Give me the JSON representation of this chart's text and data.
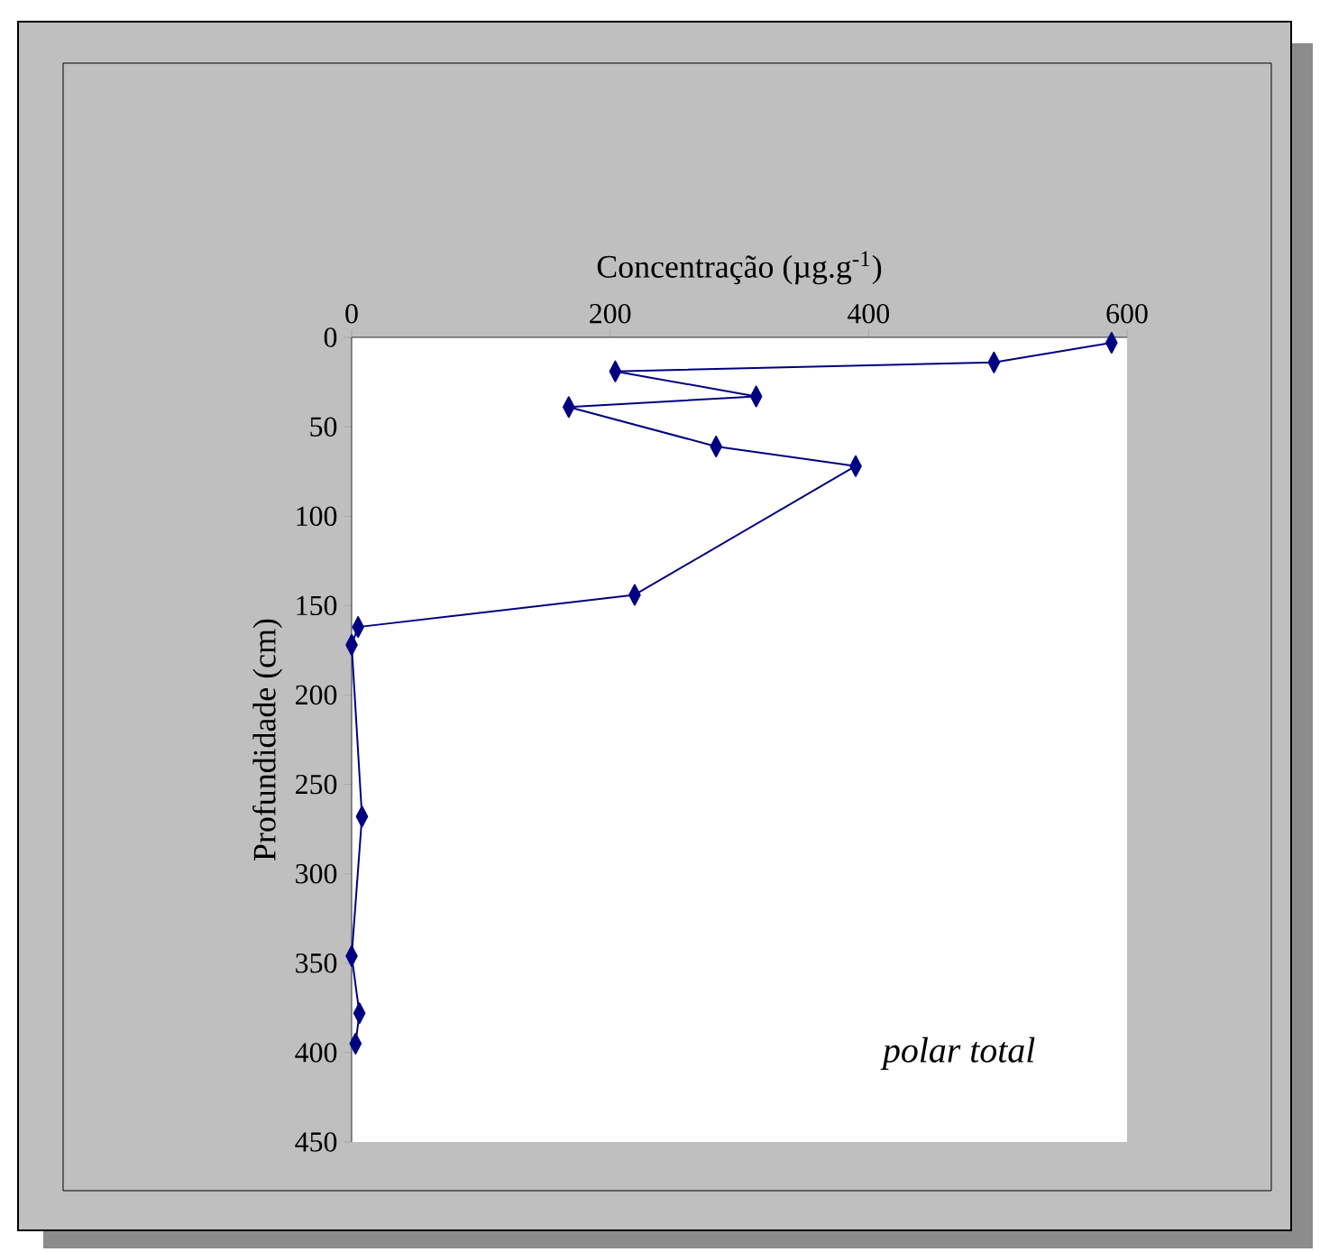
{
  "chart_data": {
    "type": "line",
    "xlabel": "Concentração (µg.g$^{-1}$)",
    "ylabel": "Profundidade (cm)",
    "annotations": [
      "*polar total*"
    ],
    "series": [
      {
        "color": "#000080",
        "x": [
          588,
          497,
          204,
          313,
          168,
          282,
          390,
          219,
          5,
          0,
          8,
          0,
          6,
          3
        ],
        "values": [
          3,
          14,
          19,
          33,
          39,
          61,
          72,
          144,
          162,
          172,
          268,
          346,
          378,
          395
        ]
      }
    ],
    "xlim": [
      0,
      600
    ],
    "xticks": [
      0,
      200,
      400,
      600
    ],
    "ylim": [
      450,
      0
    ],
    "yticks": [
      0,
      50,
      100,
      150,
      200,
      250,
      300,
      350,
      400,
      450
    ],
    "grid": false,
    "marker": "diamond",
    "line_style": "solid"
  }
}
